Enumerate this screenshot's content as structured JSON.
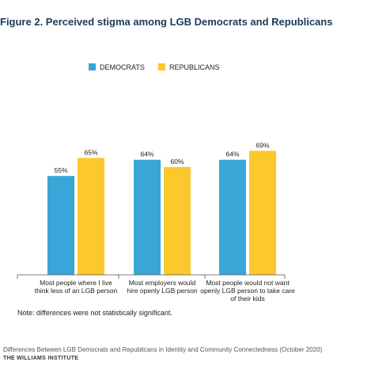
{
  "figure": {
    "title": "Figure 2. Perceived stigma among LGB Democrats and Republicans",
    "note": "Note: differences were not statistically significant.",
    "source": "Differences Between LGB Democrats and Republicans in Identity and Community Connectedness (October 2020)",
    "institute": "THE WILLIAMS INSTITUTE"
  },
  "colors": {
    "democrats": "#3aa6d8",
    "republicans": "#fcc82e"
  },
  "chart_data": {
    "type": "bar",
    "categories": [
      [
        "Most people where I live",
        "think less of an LGB person"
      ],
      [
        "Most employers would",
        "hire openly LGB person"
      ],
      [
        "Most people would not want",
        "openly LGB person to take care",
        "of their kids"
      ]
    ],
    "series": [
      {
        "name": "DEMOCRATS",
        "values": [
          55,
          64,
          64
        ],
        "labels": [
          "55%",
          "64%",
          "64%"
        ]
      },
      {
        "name": "REPUBLICANS",
        "values": [
          65,
          60,
          69
        ],
        "labels": [
          "65%",
          "60%",
          "69%"
        ]
      }
    ],
    "ylim": [
      0,
      100
    ],
    "legend": "top-center",
    "grid": false
  }
}
